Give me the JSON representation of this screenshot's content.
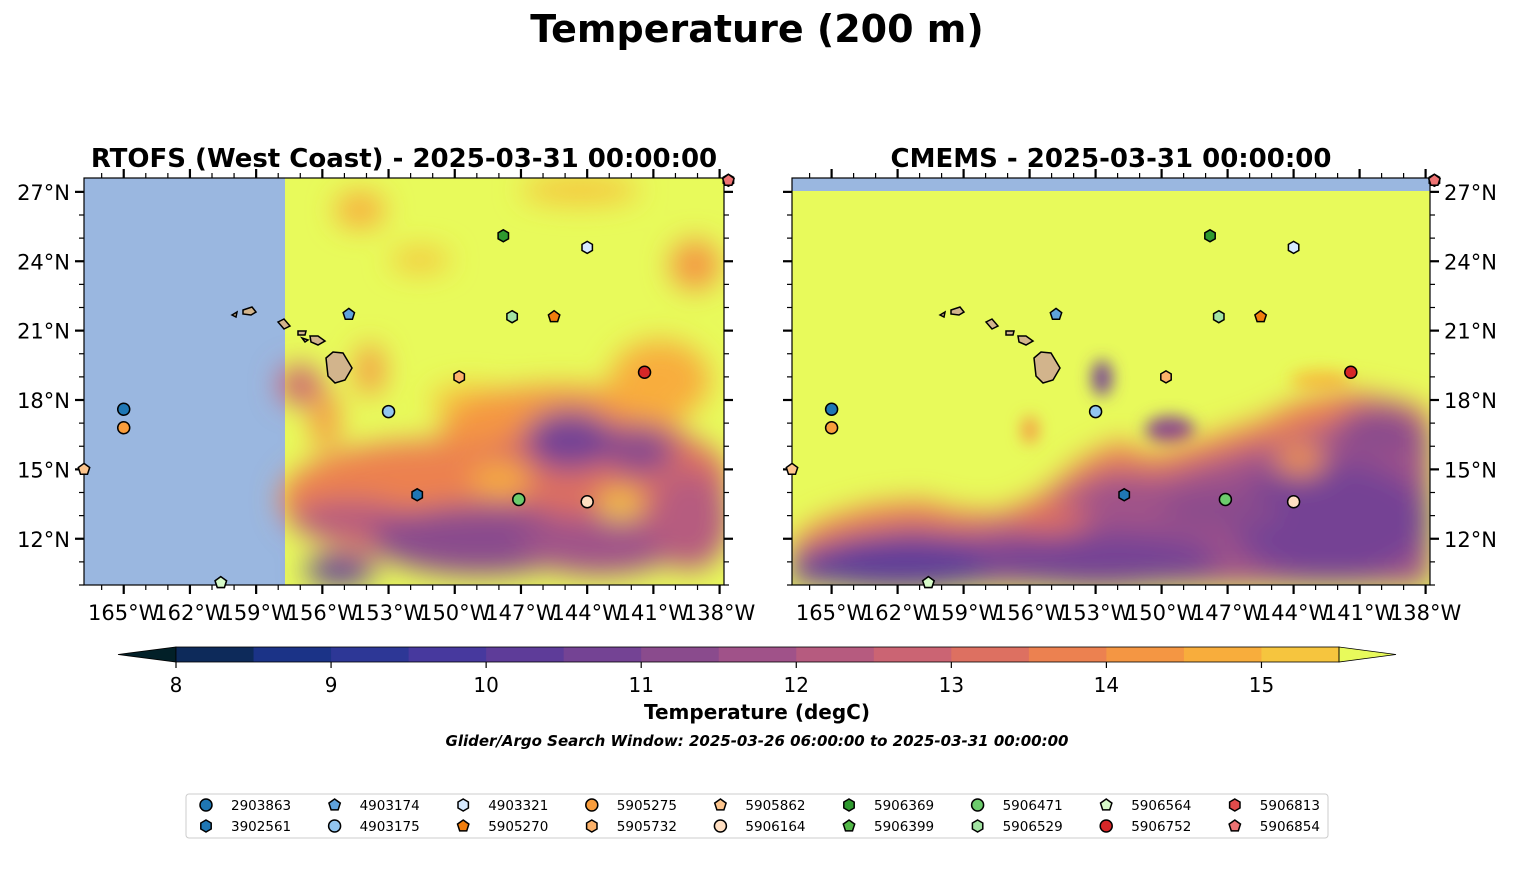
{
  "figure": {
    "title": "Temperature (200 m)",
    "search_window": "Glider/Argo Search Window: 2025-03-26 06:00:00 to 2025-03-31 00:00:00"
  },
  "panels": [
    {
      "id": "rtofs",
      "title": "RTOFS (West Coast) - 2025-03-31 00:00:00",
      "model_west_edge_lon": -157.3
    },
    {
      "id": "cmems",
      "title": "CMEMS - 2025-03-31 00:00:00",
      "model_north_edge_lat": 27.1
    }
  ],
  "axes": {
    "lon_range": [
      -166.8,
      -137.8
    ],
    "lat_range": [
      10.0,
      27.6
    ],
    "lon_ticks": [
      {
        "value": -165,
        "label": "165°W"
      },
      {
        "value": -162,
        "label": "162°W"
      },
      {
        "value": -159,
        "label": "159°W"
      },
      {
        "value": -156,
        "label": "156°W"
      },
      {
        "value": -153,
        "label": "153°W"
      },
      {
        "value": -150,
        "label": "150°W"
      },
      {
        "value": -147,
        "label": "147°W"
      },
      {
        "value": -144,
        "label": "144°W"
      },
      {
        "value": -141,
        "label": "141°W"
      },
      {
        "value": -138,
        "label": "138°W"
      }
    ],
    "lat_ticks": [
      {
        "value": 27,
        "label": "27°N"
      },
      {
        "value": 24,
        "label": "24°N"
      },
      {
        "value": 21,
        "label": "21°N"
      },
      {
        "value": 18,
        "label": "18°N"
      },
      {
        "value": 15,
        "label": "15°N"
      },
      {
        "value": 12,
        "label": "12°N"
      }
    ]
  },
  "colorbar": {
    "label": "Temperature (degC)",
    "min": 8,
    "max": 15.5,
    "ticks": [
      {
        "value": 8,
        "label": "8"
      },
      {
        "value": 9,
        "label": "9"
      },
      {
        "value": 10,
        "label": "10"
      },
      {
        "value": 11,
        "label": "11"
      },
      {
        "value": 12,
        "label": "12"
      },
      {
        "value": 13,
        "label": "13"
      },
      {
        "value": 14,
        "label": "14"
      },
      {
        "value": 15,
        "label": "15"
      }
    ],
    "colors": [
      "#042333",
      "#0d2a5a",
      "#1b3387",
      "#2d3796",
      "#47399e",
      "#5e3c99",
      "#744394",
      "#8a4b8d",
      "#a05289",
      "#b65b7f",
      "#cb6473",
      "#dd7061",
      "#ec8150",
      "#f49643",
      "#f8ad3c",
      "#f6c53e",
      "#f2de4c"
    ],
    "under_color": "#022028",
    "over_color": "#e8fa5b",
    "land_color": "#d2b48c",
    "nodata_color": "#9ab7e0"
  },
  "floats": [
    {
      "id": "2903863",
      "lon": -165.0,
      "lat": 17.6,
      "shape": "circle",
      "color": "#1f77b4"
    },
    {
      "id": "3902561",
      "lon": -151.7,
      "lat": 13.9,
      "shape": "hexagon",
      "color": "#1f77b4"
    },
    {
      "id": "4903174",
      "lon": -154.8,
      "lat": 21.7,
      "shape": "pentagon",
      "color": "#5fa2dd"
    },
    {
      "id": "4903175",
      "lon": -153.0,
      "lat": 17.5,
      "shape": "circle",
      "color": "#92c5ef"
    },
    {
      "id": "4903321",
      "lon": -144.0,
      "lat": 24.6,
      "shape": "hexagon",
      "color": "#d6eaff"
    },
    {
      "id": "5905270",
      "lon": -145.5,
      "lat": 21.6,
      "shape": "pentagon",
      "color": "#f17d0c"
    },
    {
      "id": "5905275",
      "lon": -165.0,
      "lat": 16.8,
      "shape": "circle",
      "color": "#f99d3c"
    },
    {
      "id": "5905732",
      "lon": -149.8,
      "lat": 19.0,
      "shape": "hexagon",
      "color": "#fcb26a"
    },
    {
      "id": "5905862",
      "lon": -166.8,
      "lat": 15.0,
      "shape": "pentagon",
      "color": "#fdc58d"
    },
    {
      "id": "5906164",
      "lon": -144.0,
      "lat": 13.6,
      "shape": "circle",
      "color": "#ffdfc2"
    },
    {
      "id": "5906369",
      "lon": -147.8,
      "lat": 25.1,
      "shape": "hexagon",
      "color": "#2f9a2f"
    },
    {
      "id": "5906399",
      "lon": -160.6,
      "lat": 10.1,
      "shape": "pentagon",
      "color": "#53b848"
    },
    {
      "id": "5906471",
      "lon": -147.1,
      "lat": 13.7,
      "shape": "circle",
      "color": "#6ccb6c"
    },
    {
      "id": "5906529",
      "lon": -147.4,
      "lat": 21.6,
      "shape": "hexagon",
      "color": "#a2e3a2"
    },
    {
      "id": "5906564",
      "lon": -160.6,
      "lat": 10.1,
      "shape": "pentagon",
      "color": "#d7fbc9"
    },
    {
      "id": "5906752",
      "lon": -141.4,
      "lat": 19.2,
      "shape": "circle",
      "color": "#d62728"
    },
    {
      "id": "5906813",
      "lon": -137.6,
      "lat": 27.5,
      "shape": "hexagon",
      "color": "#e04b4b"
    },
    {
      "id": "5906854",
      "lon": -137.6,
      "lat": 27.5,
      "shape": "pentagon",
      "color": "#ee7373"
    }
  ]
}
